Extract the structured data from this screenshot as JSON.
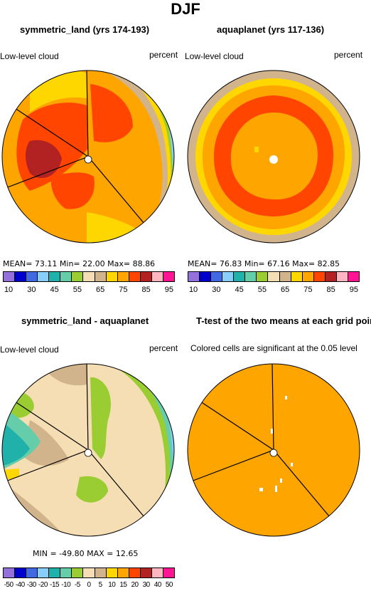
{
  "figure": {
    "title": "DJF"
  },
  "panels": [
    {
      "title": "symmetric_land (yrs 174-193)",
      "left_label": "Low-level cloud",
      "right_label": "percent",
      "stats": "MEAN=  73.11  Min=  22.00  Max=  88.86",
      "colorbar": {
        "colors": [
          "#9370db",
          "#0000cd",
          "#4169e1",
          "#87cefa",
          "#20b2aa",
          "#66cdaa",
          "#9acd32",
          "#f5deb3",
          "#d2b48c",
          "#ffd700",
          "#ffa500",
          "#ff4500",
          "#b22222",
          "#ffb6c1",
          "#ff1493"
        ],
        "labels": [
          "10",
          "30",
          "45",
          "55",
          "65",
          "75",
          "85",
          "95"
        ]
      }
    },
    {
      "title": "aquaplanet (yrs 117-136)",
      "left_label": "Low-level cloud",
      "right_label": "percent",
      "stats": "MEAN=  76.83  Min=  67.16  Max=  82.85",
      "colorbar": {
        "colors": [
          "#9370db",
          "#0000cd",
          "#4169e1",
          "#87cefa",
          "#20b2aa",
          "#66cdaa",
          "#9acd32",
          "#f5deb3",
          "#d2b48c",
          "#ffd700",
          "#ffa500",
          "#ff4500",
          "#b22222",
          "#ffb6c1",
          "#ff1493"
        ],
        "labels": [
          "10",
          "30",
          "45",
          "55",
          "65",
          "75",
          "85",
          "95"
        ]
      }
    },
    {
      "title": "symmetric_land - aquaplanet",
      "left_label": "Low-level cloud",
      "right_label": "percent",
      "stats": "MIN = -49.80  MAX =  12.65",
      "colorbar": {
        "colors": [
          "#9370db",
          "#0000cd",
          "#4169e1",
          "#87cefa",
          "#20b2aa",
          "#66cdaa",
          "#9acd32",
          "#f5deb3",
          "#d2b48c",
          "#ffd700",
          "#ffa500",
          "#ff4500",
          "#b22222",
          "#ffb6c1",
          "#ff1493"
        ],
        "labels": [
          "-50",
          "-40",
          "-30",
          "-20",
          "-15",
          "-10",
          "-5",
          "0",
          "5",
          "10",
          "15",
          "20",
          "30",
          "40",
          "50"
        ]
      }
    },
    {
      "title": "T-test of the two means at each grid point",
      "subtitle": "Colored cells are significant at the 0.05 level"
    }
  ],
  "map_colors": {
    "orange": "#ffa500",
    "red_orange": "#ff4500",
    "dark_red": "#b22222",
    "yellow": "#ffd700",
    "tan": "#d2b48c",
    "wheat": "#f5deb3",
    "green": "#9acd32",
    "teal": "#20b2aa",
    "light_blue": "#87cefa",
    "royal_blue": "#4169e1",
    "blue": "#0000cd",
    "purple": "#9370db",
    "magenta": "#ff1493"
  }
}
